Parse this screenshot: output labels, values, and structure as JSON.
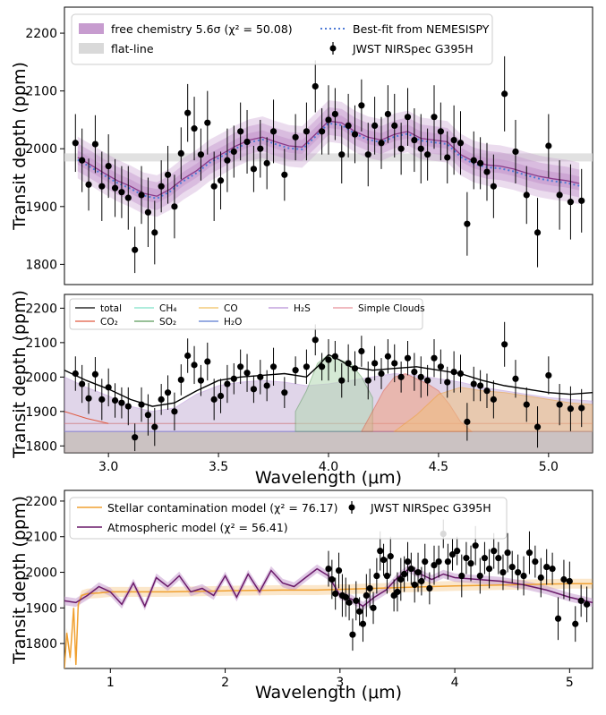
{
  "chart_data": [
    {
      "type": "line",
      "panel": "top",
      "ylabel": "Transit depth (ppm)",
      "xlabel": "",
      "xlim": [
        2.8,
        5.2
      ],
      "ylim": [
        1765,
        2245
      ],
      "yticks": [
        1800,
        1900,
        2000,
        2100,
        2200
      ],
      "grid": false,
      "legend": [
        {
          "label": "free chemistry 5.6σ (χ² = 50.08)",
          "kind": "band",
          "color": "#c79ccf"
        },
        {
          "label": "Best-fit from NEMESISPY",
          "kind": "dotted",
          "color": "#4f7bd6"
        },
        {
          "label": "flat-line",
          "kind": "band",
          "color": "#d9d9d9"
        },
        {
          "label": "JWST NIRSpec G395H",
          "kind": "errorbar",
          "color": "#000000"
        }
      ],
      "flat_line": {
        "value": 1985,
        "half_width": 7
      },
      "model_x": [
        2.86,
        2.92,
        2.98,
        3.04,
        3.1,
        3.16,
        3.22,
        3.28,
        3.34,
        3.4,
        3.46,
        3.52,
        3.58,
        3.64,
        3.7,
        3.76,
        3.82,
        3.88,
        3.94,
        4.0,
        4.06,
        4.12,
        4.18,
        4.24,
        4.3,
        4.36,
        4.42,
        4.48,
        4.54,
        4.6,
        4.66,
        4.72,
        4.78,
        4.84,
        4.9,
        4.96,
        5.02,
        5.08,
        5.14
      ],
      "model_y": [
        1985,
        1972,
        1958,
        1945,
        1935,
        1923,
        1918,
        1930,
        1948,
        1962,
        1980,
        1992,
        2005,
        2015,
        2020,
        2012,
        2005,
        2003,
        2025,
        2048,
        2045,
        2030,
        2020,
        2015,
        2025,
        2030,
        2018,
        2015,
        2012,
        1990,
        1978,
        1972,
        1970,
        1965,
        1958,
        1952,
        1948,
        1945,
        1940
      ],
      "band_half_widths": [
        12,
        24,
        36
      ],
      "points": {
        "x": [
          2.85,
          2.88,
          2.91,
          2.94,
          2.97,
          3.0,
          3.03,
          3.06,
          3.09,
          3.12,
          3.15,
          3.18,
          3.21,
          3.24,
          3.27,
          3.3,
          3.33,
          3.36,
          3.39,
          3.42,
          3.45,
          3.48,
          3.51,
          3.54,
          3.57,
          3.6,
          3.63,
          3.66,
          3.69,
          3.72,
          3.75,
          3.8,
          3.85,
          3.9,
          3.94,
          3.97,
          4.0,
          4.03,
          4.06,
          4.09,
          4.12,
          4.15,
          4.18,
          4.21,
          4.24,
          4.27,
          4.3,
          4.33,
          4.36,
          4.39,
          4.42,
          4.45,
          4.48,
          4.51,
          4.54,
          4.57,
          4.6,
          4.63,
          4.66,
          4.69,
          4.72,
          4.75,
          4.8,
          4.85,
          4.9,
          4.95,
          5.0,
          5.05,
          5.1,
          5.15
        ],
        "y": [
          2010,
          1980,
          1938,
          2008,
          1935,
          1970,
          1932,
          1925,
          1915,
          1825,
          1920,
          1890,
          1855,
          1935,
          1955,
          1900,
          1992,
          2062,
          2035,
          1990,
          2045,
          1935,
          1945,
          1980,
          1995,
          2030,
          2012,
          1965,
          2000,
          1975,
          2030,
          1955,
          2020,
          2030,
          2108,
          2030,
          2050,
          2060,
          1990,
          2040,
          2025,
          2075,
          1990,
          2040,
          2010,
          2060,
          2040,
          2000,
          2055,
          2015,
          2000,
          1990,
          2055,
          2030,
          1985,
          2015,
          2010,
          1870,
          1980,
          1975,
          1960,
          1935,
          2095,
          1995,
          1920,
          1855,
          2005,
          1920,
          1908,
          1910
        ],
        "err": [
          50,
          55,
          45,
          50,
          60,
          55,
          50,
          45,
          55,
          40,
          50,
          60,
          55,
          45,
          50,
          55,
          45,
          50,
          55,
          45,
          55,
          60,
          50,
          55,
          45,
          50,
          55,
          40,
          50,
          45,
          55,
          45,
          40,
          50,
          45,
          40,
          60,
          45,
          50,
          55,
          50,
          45,
          55,
          50,
          45,
          50,
          55,
          45,
          50,
          55,
          60,
          45,
          55,
          50,
          45,
          60,
          55,
          55,
          50,
          45,
          50,
          55,
          65,
          55,
          50,
          60,
          55,
          60,
          65,
          55
        ]
      }
    },
    {
      "type": "area",
      "panel": "middle",
      "ylabel": "Transit depth (ppm)",
      "xlabel": "Wavelength (μm)",
      "xlim": [
        2.8,
        5.2
      ],
      "ylim": [
        1780,
        2240
      ],
      "yticks": [
        1800,
        1900,
        2000,
        2100,
        2200
      ],
      "xticks": [
        3.0,
        3.5,
        4.0,
        4.5,
        5.0
      ],
      "xtick_labels": [
        "3.0",
        "3.5",
        "4.0",
        "4.5",
        "5.0"
      ],
      "legend": [
        {
          "label": "total",
          "color": "#000000"
        },
        {
          "label": "CH₄",
          "color": "#7fe0c8"
        },
        {
          "label": "CO",
          "color": "#f0c060"
        },
        {
          "label": "H₂S",
          "color": "#b890d8"
        },
        {
          "label": "Simple Clouds",
          "color": "#e8909a"
        },
        {
          "label": "CO₂",
          "color": "#e05a40"
        },
        {
          "label": "SO₂",
          "color": "#5a9a5a"
        },
        {
          "label": "H₂O",
          "color": "#5a7ad0"
        }
      ],
      "clouds_level": 1842,
      "co2_level": 1865,
      "series": [
        {
          "name": "total",
          "x": [
            2.8,
            2.9,
            3.0,
            3.1,
            3.2,
            3.3,
            3.4,
            3.5,
            3.6,
            3.7,
            3.8,
            3.9,
            3.95,
            4.0,
            4.05,
            4.1,
            4.2,
            4.3,
            4.4,
            4.5,
            4.6,
            4.7,
            4.8,
            4.9,
            5.0,
            5.1,
            5.2
          ],
          "y": [
            2020,
            1990,
            1965,
            1935,
            1915,
            1925,
            1960,
            1990,
            2000,
            2005,
            2010,
            2000,
            2030,
            2065,
            2050,
            2030,
            2020,
            2025,
            2030,
            2020,
            2010,
            1990,
            1975,
            1965,
            1955,
            1950,
            1955
          ]
        },
        {
          "name": "H₂S",
          "x": [
            2.8,
            2.9,
            3.0,
            3.1,
            3.2,
            3.3,
            3.4,
            3.5,
            3.6,
            3.7,
            3.8,
            3.9,
            4.0,
            4.1,
            4.2,
            4.3,
            4.4,
            4.5,
            4.6,
            4.7,
            4.8,
            4.9,
            5.0,
            5.1,
            5.2
          ],
          "y": [
            2000,
            1970,
            1945,
            1915,
            1900,
            1910,
            1950,
            1975,
            1985,
            1990,
            1985,
            1975,
            1980,
            1990,
            2000,
            2010,
            2005,
            1995,
            1985,
            1970,
            1960,
            1950,
            1940,
            1935,
            1930
          ]
        },
        {
          "name": "SO₂",
          "x": [
            3.85,
            3.9,
            3.95,
            4.0,
            4.05,
            4.1,
            4.15,
            4.2
          ],
          "y": [
            1900,
            1960,
            2040,
            2065,
            2050,
            2040,
            2000,
            1940
          ]
        },
        {
          "name": "CO₂",
          "x": [
            4.15,
            4.2,
            4.25,
            4.3,
            4.35,
            4.4,
            4.45,
            4.5,
            4.55,
            4.6,
            4.65
          ],
          "y": [
            1842,
            1900,
            1960,
            2000,
            2010,
            1995,
            1980,
            1960,
            1920,
            1870,
            1842
          ]
        },
        {
          "name": "CO",
          "x": [
            4.3,
            4.4,
            4.5,
            4.6,
            4.7,
            4.8,
            4.9,
            5.0,
            5.1,
            5.2
          ],
          "y": [
            1842,
            1890,
            1950,
            1970,
            1960,
            1955,
            1945,
            1935,
            1925,
            1920
          ]
        }
      ]
    },
    {
      "type": "line",
      "panel": "bottom",
      "ylabel": "Transit depth (ppm)",
      "xlabel": "Wavelength (μm)",
      "xlim": [
        0.6,
        5.2
      ],
      "ylim": [
        1730,
        2230
      ],
      "yticks": [
        1800,
        1900,
        2000,
        2100,
        2200
      ],
      "xticks": [
        1,
        2,
        3,
        4,
        5
      ],
      "legend": [
        {
          "label": "Stellar contamination model (χ² = 76.17)",
          "color": "#f0a030"
        },
        {
          "label": "Atmospheric model (χ² = 56.41)",
          "color": "#6a1a6a"
        },
        {
          "label": "JWST NIRSpec G395H",
          "color": "#000000"
        }
      ],
      "series": [
        {
          "name": "Stellar contamination model (χ² = 76.17)",
          "x": [
            0.6,
            0.62,
            0.65,
            0.68,
            0.7,
            0.72,
            0.75,
            0.8,
            0.9,
            1.0,
            1.2,
            1.5,
            2.0,
            2.5,
            2.8,
            3.0,
            3.3,
            3.6,
            4.0,
            4.5,
            5.0,
            5.2
          ],
          "y": [
            1730,
            1830,
            1760,
            1900,
            1740,
            1910,
            1935,
            1940,
            1942,
            1945,
            1945,
            1945,
            1948,
            1950,
            1950,
            1952,
            1955,
            1958,
            1962,
            1965,
            1968,
            1968
          ]
        },
        {
          "name": "Atmospheric model (χ² = 56.41)",
          "x": [
            0.6,
            0.7,
            0.8,
            0.9,
            1.0,
            1.1,
            1.2,
            1.3,
            1.4,
            1.5,
            1.6,
            1.7,
            1.8,
            1.9,
            2.0,
            2.1,
            2.2,
            2.3,
            2.4,
            2.5,
            2.6,
            2.7,
            2.8,
            2.9,
            3.0,
            3.1,
            3.2,
            3.3,
            3.4,
            3.5,
            3.6,
            3.7,
            3.8,
            3.9,
            4.0,
            4.2,
            4.4,
            4.6,
            4.8,
            5.0,
            5.2
          ],
          "y": [
            1920,
            1915,
            1935,
            1960,
            1945,
            1910,
            1970,
            1905,
            1985,
            1960,
            1990,
            1945,
            1955,
            1935,
            1990,
            1930,
            1995,
            1945,
            2005,
            1970,
            1960,
            1985,
            2010,
            1990,
            1935,
            1925,
            1905,
            1930,
            1950,
            1985,
            2010,
            1995,
            1980,
            1995,
            1985,
            1980,
            1975,
            1965,
            1950,
            1930,
            1915
          ]
        }
      ],
      "points": {
        "x": [
          2.9,
          2.93,
          2.96,
          2.99,
          3.02,
          3.05,
          3.08,
          3.11,
          3.14,
          3.17,
          3.2,
          3.23,
          3.26,
          3.29,
          3.32,
          3.35,
          3.38,
          3.41,
          3.44,
          3.47,
          3.5,
          3.53,
          3.56,
          3.59,
          3.62,
          3.65,
          3.68,
          3.71,
          3.74,
          3.78,
          3.82,
          3.86,
          3.9,
          3.94,
          3.98,
          4.02,
          4.06,
          4.1,
          4.14,
          4.18,
          4.22,
          4.26,
          4.3,
          4.34,
          4.38,
          4.42,
          4.46,
          4.5,
          4.55,
          4.6,
          4.65,
          4.7,
          4.75,
          4.8,
          4.85,
          4.9,
          4.95,
          5.0,
          5.05,
          5.1,
          5.15
        ],
        "y": [
          2010,
          1980,
          1940,
          2005,
          1935,
          1930,
          1915,
          1825,
          1920,
          1890,
          1855,
          1935,
          1955,
          1900,
          1990,
          2060,
          2035,
          1990,
          2045,
          1935,
          1945,
          1980,
          1995,
          2030,
          2010,
          1965,
          2000,
          1975,
          2030,
          1955,
          2020,
          2030,
          2108,
          2030,
          2050,
          2060,
          1990,
          2040,
          2025,
          2075,
          1990,
          2040,
          2010,
          2060,
          2040,
          2000,
          2055,
          2015,
          2000,
          1990,
          2055,
          2030,
          1985,
          2015,
          2010,
          1870,
          1980,
          1975,
          1855,
          1920,
          1910
        ],
        "err": [
          50,
          55,
          45,
          50,
          60,
          55,
          50,
          45,
          55,
          40,
          50,
          60,
          55,
          45,
          50,
          55,
          45,
          50,
          55,
          45,
          55,
          60,
          50,
          55,
          45,
          50,
          55,
          40,
          50,
          45,
          55,
          45,
          40,
          50,
          45,
          40,
          60,
          45,
          50,
          55,
          50,
          45,
          55,
          50,
          45,
          50,
          55,
          45,
          50,
          55,
          60,
          45,
          55,
          50,
          45,
          60,
          55,
          55,
          50,
          45,
          50
        ]
      }
    }
  ],
  "texts": {
    "ylabel1": "Transit depth (ppm)",
    "ylabel2": "Transit depth (ppm)",
    "ylabel3": "Transit depth (ppm)",
    "xlabel2": "Wavelength (μm)",
    "xlabel3": "Wavelength (μm)",
    "leg1": [
      "free chemistry 5.6σ (χ² = 50.08)",
      "Best-fit from NEMESISPY",
      "flat-line",
      "JWST NIRSpec G395H"
    ],
    "leg2": [
      "total",
      "CH₄",
      "CO",
      "H₂S",
      "Simple Clouds",
      "CO₂",
      "SO₂",
      "H₂O"
    ],
    "leg3": [
      "Stellar contamination model (χ² = 76.17)",
      "Atmospheric model (χ² = 56.41)",
      "JWST NIRSpec G395H"
    ]
  },
  "colors": {
    "purple": "#8a3a8a",
    "purple_band": "#c79ccf",
    "blue_dotted": "#4f7bd6",
    "flat_band": "#d9d9d9",
    "orange": "#f0a030",
    "dark_purple": "#6a1a6a",
    "clouds": "#e8909a",
    "co2": "#e05a40"
  }
}
